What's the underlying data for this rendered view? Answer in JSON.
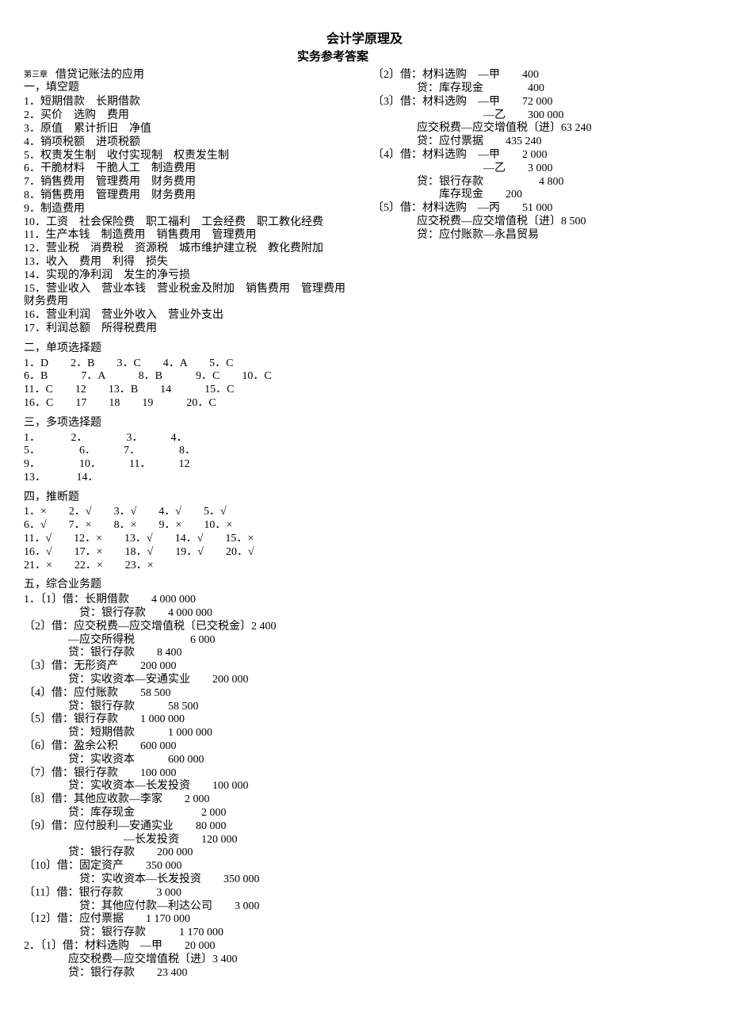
{
  "title_line1": "会计学原理及",
  "title_line2": "实务参考答案",
  "chapter_small": "第三章",
  "chapter_rest": "借贷记账法的应用",
  "sec1_head": "一，填空题",
  "sec1": [
    "1．短期借款　长期借款",
    "2．买价　选购　费用",
    "3．原值　累计折旧　净值",
    "4．销项税额　进项税额",
    "5．权责发生制　收付实现制　权责发生制",
    "6．干脆材料　干脆人工　制造费用",
    "7．销售费用　管理费用　财务费用",
    "8．销售费用　管理费用　财务费用",
    "9．制造费用",
    "10．工资　社会保险费　职工福利　工会经费　职工教化经费",
    "11．生产本钱　制造费用　销售费用　管理费用",
    "12．营业税　消费税　资源税　城市维护建立税　教化费附加",
    "13．收入　费用　利得　损失",
    "14．实现的净利润　发生的净亏损",
    "15．营业收入　营业本钱　营业税金及附加　销售费用　管理费用　财务费用",
    "16．营业利润　营业外收入　营业外支出",
    "17．利润总额　所得税费用"
  ],
  "sec2_head": "二，单项选择题",
  "sec2": [
    "1．D　　2．B　　3．C　　4．A　　5．C",
    "6．B　　　7．A　　　8．B　　　9．C　　10．C",
    "11．C　　12　　13．B　　14　　　15．C",
    "16．C　　17　　18　　19　　　20．C"
  ],
  "sec3_head": "三，多项选择题",
  "sec3": [
    "1．　　　 2．　　　　3．　　　4．",
    "5．　　　　6．　　　7．　　　　8．",
    "9．　　　　10．　　　11．　　　12",
    "13．　　　 14．"
  ],
  "sec4_head": "四，推断题",
  "sec4": [
    "1．×　　2．√　　3．√　　4．√　　5．√",
    "6．√　　7．×　　8．×　　9．×　　10．×",
    "11．√　　12．×　　13．√　　14．√　　15．×",
    "16．√　　17．×　　18．√　　19．√　　20．√",
    "21．×　　22．×　　23．×"
  ],
  "sec5_head": "五，综合业务题",
  "sec5": [
    "1．〔1〕借：长期借款　　4 000 000",
    "　　　　　贷：银行存款　　4 000 000",
    "〔2〕借：应交税费—应交增值税〔已交税金〕2 400",
    "　　　　—应交所得税　　　　　6 000",
    "　　　　贷：银行存款　　8 400",
    "〔3〕借：无形资产　　200 000",
    "　　　　贷：实收资本—安通实业　　200 000",
    "〔4〕借：应付账款　　58 500",
    "　　　　贷：银行存款　　　58 500",
    "〔5〕借：银行存款　　1 000 000",
    "　　　　贷：短期借款　　　1 000 000",
    "〔6〕借：盈余公积　　600 000",
    "　　　　贷：实收资本　　　600 000",
    "〔7〕借：银行存款　　100 000",
    "　　　　贷：实收资本—长发投资　　100 000",
    "〔8〕借：其他应收款—李家　　2 000",
    "　　　　贷：库存现金　　　　　　2 000",
    "〔9〕借：应付股利—安通实业　　80 000",
    "　　　　　　　　　—长发投资　　120 000",
    "　　　　贷：银行存款　　200 000",
    "〔10〕借：固定资产　　350 000",
    "　　　　　贷：实收资本—长发投资　　350 000",
    "〔11〕借：银行存款　　　3 000",
    "　　　　　贷：其他应付款—利达公司　　3 000",
    "〔12〕借：应付票据　　1 170 000",
    "　　　　　贷：银行存款　　　1 170 000",
    "",
    "2．〔1〕借：材料选购　—甲　　20 000",
    "　　　　应交税费—应交增值税〔进〕3 400",
    "　　　　贷：银行存款　　23 400",
    "〔2〕借：材料选购　—甲　　400",
    "　　　　贷：库存现金　　　　400",
    "〔3〕借：材料选购　—甲　　72 000",
    "　　　　　　　　　　—乙　　300 000",
    "　　　　应交税费—应交增值税〔进〕63 240",
    "　　　　贷：应付票据　　435 240",
    "〔4〕借：材料选购　—甲　　2 000",
    "　　　　　　　　　　—乙　　3 000",
    "　　　　贷：银行存款　　　　　4 800",
    "　　　　　　库存现金　　200",
    "〔5〕借：材料选购　—丙　　51 000",
    "　　　　应交税费—应交增值税〔进〕8 500",
    "　　　　贷：应付账款—永昌贸易"
  ]
}
